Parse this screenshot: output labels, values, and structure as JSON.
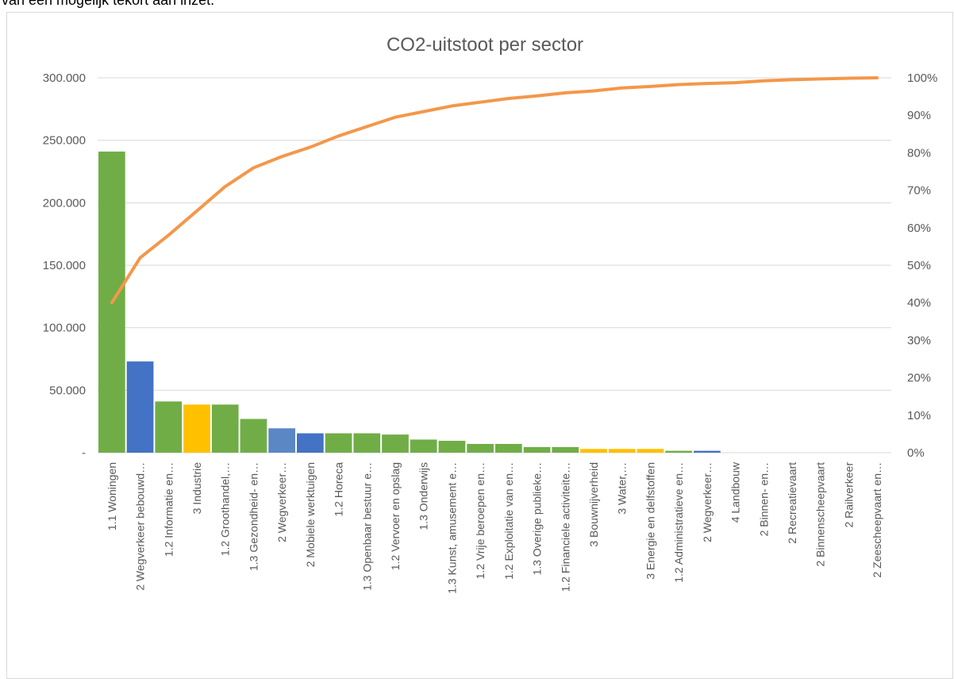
{
  "top_text": "van een mogelijk tekort aan inzet.",
  "chart_data": {
    "type": "bar",
    "title": "CO2-uitstoot per sector",
    "xlabel": "",
    "ylabel": "",
    "ylim": [
      0,
      300000
    ],
    "y2lim": [
      0,
      1
    ],
    "y_ticks": [
      "-",
      "50.000",
      "100.000",
      "150.000",
      "200.000",
      "250.000",
      "300.000"
    ],
    "y2_ticks": [
      "0%",
      "10%",
      "20%",
      "30%",
      "40%",
      "50%",
      "60%",
      "70%",
      "80%",
      "90%",
      "100%"
    ],
    "grid": true,
    "legend": "none",
    "colors": {
      "green": "#70ad47",
      "blue": "#4472c4",
      "steel": "#5b87c5",
      "yellow": "#ffc000",
      "line": "#f4974a",
      "grid": "#d9d9d9"
    },
    "categories": [
      "1.1 Woningen",
      "2 Wegverkeer bebouwd…",
      "1.2 Informatie en…",
      "3 Industrie",
      "1.2 Groothandel,…",
      "1.3 Gezondheid- en…",
      "2 Wegverkeer…",
      "2 Mobiele werktuigen",
      "1.2 Horeca",
      "1.3 Openbaar bestuur e…",
      "1.2 Vervoer en opslag",
      "1.3 Onderwijs",
      "1.3 Kunst, amusement e…",
      "1.2 Vrije beroepen en…",
      "1.2 Exploitatie van en…",
      "1.3 Overige publieke…",
      "1.2 Financiele activiteite…",
      "3 Bouwnijverheid",
      "3 Water,…",
      "3 Energie en delfstoffen",
      "1.2 Administratieve en…",
      "2 Wegverkeer…",
      "4 Landbouw",
      "2 Binnen- en…",
      "2 Recreatievaart",
      "2 Binnenscheepvaart",
      "2 Railverkeer",
      "2 Zeescheepvaart en…"
    ],
    "series": [
      {
        "type": "bar",
        "values": [
          241000,
          73000,
          41000,
          38500,
          38500,
          27000,
          19500,
          15500,
          15500,
          15500,
          14500,
          10500,
          9500,
          7000,
          7000,
          4500,
          4500,
          3000,
          3000,
          3000,
          1500,
          1500,
          0,
          0,
          0,
          0,
          0,
          0
        ],
        "colors": [
          "green",
          "blue",
          "green",
          "yellow",
          "green",
          "green",
          "steel",
          "blue",
          "green",
          "green",
          "green",
          "green",
          "green",
          "green",
          "green",
          "green",
          "green",
          "yellow",
          "yellow",
          "yellow",
          "green",
          "blue",
          "green",
          "green",
          "green",
          "green",
          "green",
          "green"
        ]
      },
      {
        "type": "line",
        "axis": "right",
        "values": [
          0.4,
          0.52,
          0.58,
          0.645,
          0.71,
          0.76,
          0.79,
          0.815,
          0.845,
          0.87,
          0.895,
          0.91,
          0.925,
          0.935,
          0.945,
          0.952,
          0.96,
          0.965,
          0.973,
          0.977,
          0.982,
          0.985,
          0.987,
          0.992,
          0.995,
          0.997,
          0.999,
          1.0
        ]
      }
    ]
  }
}
